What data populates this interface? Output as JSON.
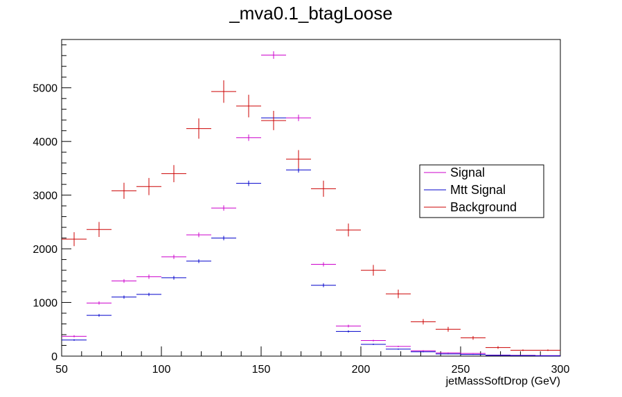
{
  "chart_data": {
    "type": "line",
    "title": "_mva0.1_btagLoose",
    "xlabel": "jetMassSoftDrop (GeV)",
    "ylabel": "",
    "xlim": [
      50,
      300
    ],
    "ylim": [
      0,
      5900
    ],
    "x_ticks": [
      50,
      100,
      150,
      200,
      250,
      300
    ],
    "y_ticks": [
      0,
      1000,
      2000,
      3000,
      4000,
      5000
    ],
    "bin_edges": [
      50,
      62.5,
      75,
      87.5,
      100,
      112.5,
      125,
      137.5,
      150,
      162.5,
      175,
      187.5,
      200,
      212.5,
      225,
      237.5,
      250,
      262.5,
      275,
      287.5,
      300
    ],
    "legend_position": "right",
    "series": [
      {
        "name": "Signal",
        "color": "#cc00cc",
        "values": [
          370,
          990,
          1400,
          1480,
          1850,
          2260,
          2760,
          4070,
          5610,
          4440,
          1710,
          560,
          290,
          180,
          100,
          60,
          50,
          20,
          15,
          10
        ],
        "errors": [
          20,
          30,
          35,
          40,
          40,
          45,
          50,
          60,
          70,
          60,
          40,
          25,
          15,
          12,
          10,
          8,
          7,
          5,
          4,
          3
        ]
      },
      {
        "name": "Mtt Signal",
        "color": "#0000cc",
        "values": [
          300,
          760,
          1100,
          1150,
          1460,
          1770,
          2200,
          3220,
          4440,
          3470,
          1320,
          460,
          220,
          130,
          80,
          40,
          30,
          15,
          10,
          5
        ],
        "errors": [
          15,
          25,
          30,
          30,
          35,
          35,
          40,
          50,
          60,
          50,
          35,
          20,
          12,
          10,
          8,
          6,
          5,
          4,
          3,
          2
        ]
      },
      {
        "name": "Background",
        "color": "#cc0000",
        "values": [
          2180,
          2360,
          3080,
          3160,
          3400,
          4240,
          4930,
          4660,
          4390,
          3670,
          3120,
          2350,
          1600,
          1160,
          640,
          500,
          340,
          160,
          110,
          110
        ],
        "errors": [
          130,
          140,
          150,
          160,
          160,
          190,
          210,
          210,
          180,
          170,
          150,
          120,
          100,
          80,
          50,
          45,
          35,
          25,
          15,
          15
        ]
      }
    ]
  }
}
